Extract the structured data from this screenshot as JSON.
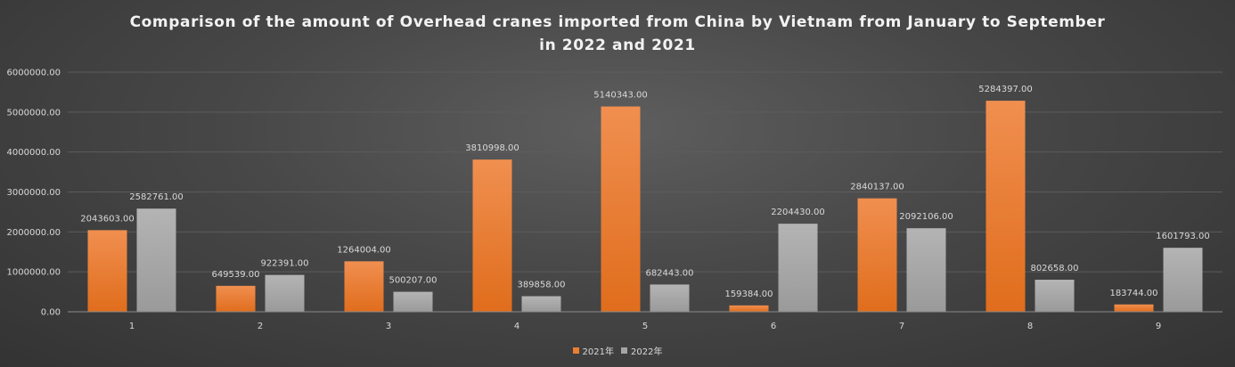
{
  "chart_data": {
    "type": "bar",
    "title": "Comparison of the amount of Overhead cranes imported from China by Vietnam from January to September in 2022 and 2021",
    "title_lines": [
      "Comparison of the amount of Overhead cranes imported from China by Vietnam from January to September",
      "in 2022 and 2021"
    ],
    "categories": [
      "1",
      "2",
      "3",
      "4",
      "5",
      "6",
      "7",
      "8",
      "9"
    ],
    "series": [
      {
        "name": "2021年",
        "color": "#ed7d31",
        "values": [
          2043603,
          649539,
          1264004,
          3810998,
          5140343,
          159384,
          2840137,
          5284397,
          183744
        ],
        "labels": [
          "2043603.00",
          "649539.00",
          "1264004.00",
          "3810998.00",
          "5140343.00",
          "159384.00",
          "2840137.00",
          "5284397.00",
          "183744.00"
        ]
      },
      {
        "name": "2022年",
        "color": "#a5a5a5",
        "values": [
          2582761,
          922391,
          500207,
          389858,
          682443,
          2204430,
          2092106,
          802658,
          1601793
        ],
        "labels": [
          "2582761.00",
          "922391.00",
          "500207.00",
          "389858.00",
          "682443.00",
          "2204430.00",
          "2092106.00",
          "802658.00",
          "1601793.00"
        ]
      }
    ],
    "y_ticks": [
      "0.00",
      "1000000.00",
      "2000000.00",
      "3000000.00",
      "4000000.00",
      "5000000.00",
      "6000000.00"
    ],
    "ylim": [
      0,
      6000000
    ],
    "xlabel": "",
    "ylabel": "",
    "grid": true,
    "legend_position": "bottom"
  }
}
